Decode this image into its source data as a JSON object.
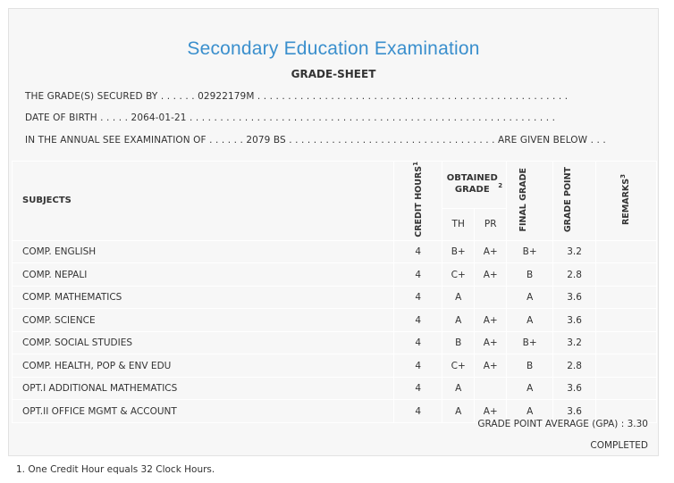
{
  "title": "Secondary Education Examination",
  "subtitle": "GRADE-SHEET",
  "info": {
    "line1": "THE GRADE(S) SECURED BY . . . . . . 02922179M . . . . . . . . . . . . . . . . . . . . . . . . . . . . . . . . . . . . . . . . . . . . . . . . . . .",
    "line2": "DATE OF BIRTH . . . . . 2064-01-21 . . . . . . . . . . . . . . . . . . . . . . . . . . . . . . . . . . . . . . . . . . . . . . . . . . . . . . . . . . . .",
    "line3": "IN THE ANNUAL SEE EXAMINATION OF . . . . . . 2079 BS . . . . . . . . . . . . . . . . . . . . . . . . . . . . . . . . . . ARE GIVEN BELOW . . ."
  },
  "table": {
    "headers": {
      "subjects": "SUBJECTS",
      "credit_hours": "CREDIT HOURS",
      "credit_sup": "1",
      "obtained_grade": "OBTAINED GRADE",
      "obtained_sup": "2",
      "th": "TH",
      "pr": "PR",
      "final_grade": "FINAL GRADE",
      "grade_point": "GRADE POINT",
      "remarks": "REMARKS",
      "remarks_sup": "3"
    },
    "rows": [
      {
        "subject": "COMP. ENGLISH",
        "credit": "4",
        "th": "B+",
        "pr": "A+",
        "final": "B+",
        "gp": "3.2",
        "remarks": ""
      },
      {
        "subject": "COMP. NEPALI",
        "credit": "4",
        "th": "C+",
        "pr": "A+",
        "final": "B",
        "gp": "2.8",
        "remarks": ""
      },
      {
        "subject": "COMP. MATHEMATICS",
        "credit": "4",
        "th": "A",
        "pr": "",
        "final": "A",
        "gp": "3.6",
        "remarks": ""
      },
      {
        "subject": "COMP. SCIENCE",
        "credit": "4",
        "th": "A",
        "pr": "A+",
        "final": "A",
        "gp": "3.6",
        "remarks": ""
      },
      {
        "subject": "COMP. SOCIAL STUDIES",
        "credit": "4",
        "th": "B",
        "pr": "A+",
        "final": "B+",
        "gp": "3.2",
        "remarks": ""
      },
      {
        "subject": "COMP. HEALTH, POP & ENV EDU",
        "credit": "4",
        "th": "C+",
        "pr": "A+",
        "final": "B",
        "gp": "2.8",
        "remarks": ""
      },
      {
        "subject": "OPT.I ADDITIONAL MATHEMATICS",
        "credit": "4",
        "th": "A",
        "pr": "",
        "final": "A",
        "gp": "3.6",
        "remarks": ""
      },
      {
        "subject": "OPT.II OFFICE MGMT & ACCOUNT",
        "credit": "4",
        "th": "A",
        "pr": "A+",
        "final": "A",
        "gp": "3.6",
        "remarks": ""
      }
    ]
  },
  "gpa": "GRADE POINT AVERAGE (GPA) : 3.30",
  "status": "COMPLETED",
  "footnote": "1. One Credit Hour equals 32 Clock Hours.",
  "colors": {
    "title": "#3a8fcd",
    "panel": "#f7f7f7",
    "text": "#333333"
  }
}
